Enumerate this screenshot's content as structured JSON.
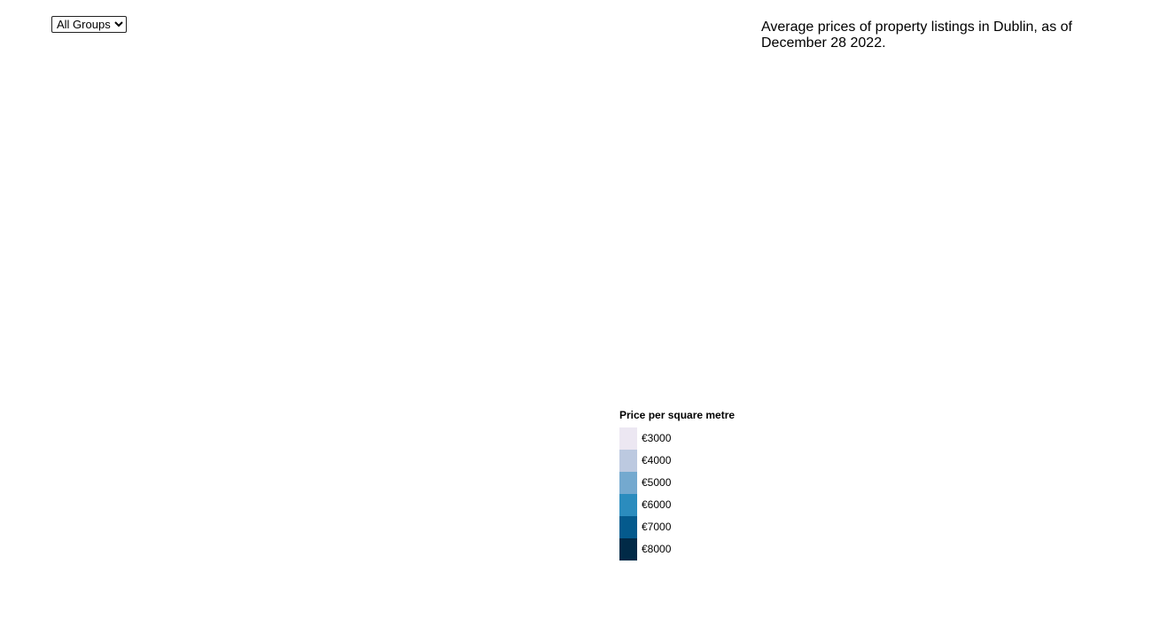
{
  "filter": {
    "selected": "All Groups",
    "options": [
      "All Groups"
    ]
  },
  "description": "Average prices of property listings in Dublin, as of December 28 2022.",
  "legend": {
    "title": "Price per square metre",
    "items": [
      {
        "label": "€3000",
        "color": "#ece7f2"
      },
      {
        "label": "€4000",
        "color": "#bcc9e0"
      },
      {
        "label": "€5000",
        "color": "#74a9cf"
      },
      {
        "label": "€6000",
        "color": "#2b8cbe"
      },
      {
        "label": "€7000",
        "color": "#045a8d"
      },
      {
        "label": "€8000",
        "color": "#012a47"
      }
    ]
  }
}
